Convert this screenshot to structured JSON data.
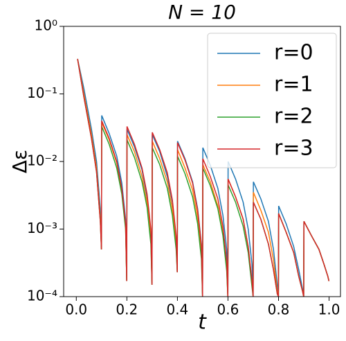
{
  "chart_data": {
    "type": "line",
    "title": "N = 10",
    "x_label": "t",
    "y_label": "Δε",
    "yscale": "log",
    "xlim": [
      -0.05,
      1.045
    ],
    "ylim": [
      0.0001,
      1
    ],
    "xticks": [
      {
        "value": 0,
        "label": "0.0"
      },
      0.2,
      0.4,
      0.6,
      0.8,
      {
        "value": 1,
        "label": "1.0"
      }
    ],
    "yticks": [
      {
        "value": 0.0001,
        "label": "10⁻⁴"
      },
      {
        "value": 0.001,
        "label": "10⁻³"
      },
      {
        "value": 0.01,
        "label": "10⁻²"
      },
      {
        "value": 0.1,
        "label": "10⁻¹"
      },
      {
        "value": 1,
        "label": "10⁰"
      }
    ],
    "legend": "upper right",
    "x": [
      0.005,
      0.03,
      0.06,
      0.08,
      0.095,
      0.0995,
      0.1005,
      0.13,
      0.16,
      0.18,
      0.195,
      0.1995,
      0.2005,
      0.23,
      0.26,
      0.28,
      0.295,
      0.2995,
      0.3005,
      0.33,
      0.36,
      0.38,
      0.395,
      0.3995,
      0.4005,
      0.43,
      0.46,
      0.48,
      0.495,
      0.4995,
      0.5005,
      0.53,
      0.56,
      0.58,
      0.595,
      0.5995,
      0.6005,
      0.63,
      0.66,
      0.68,
      0.695,
      0.6995,
      0.7005,
      0.73,
      0.76,
      0.78,
      0.795,
      0.7995,
      0.8005,
      0.83,
      0.86,
      0.88,
      0.895,
      0.8995,
      0.9005,
      0.93,
      0.96,
      0.98,
      0.995,
      0.9995
    ],
    "series": [
      {
        "name": "r=0",
        "color": "#1f77b4",
        "values": [
          0.33,
          0.12,
          0.03,
          0.01,
          0.002,
          0.0005,
          0.048,
          0.026,
          0.012,
          0.0048,
          0.0014,
          0.00017,
          0.03,
          0.0165,
          0.0075,
          0.003,
          0.0009,
          0.00015,
          0.025,
          0.014,
          0.006,
          0.0025,
          0.00075,
          0.00023,
          0.02,
          0.011,
          0.005,
          0.002,
          0.0006,
          0.0001,
          0.016,
          0.0088,
          0.004,
          0.0016,
          0.0005,
          0.0001,
          0.01,
          0.0055,
          0.0025,
          0.001,
          0.0003,
          0.0001,
          0.005,
          0.0028,
          0.0013,
          0.0005,
          0.00015,
          0.0001,
          0.0022,
          0.0012,
          0.00055,
          0.00025,
          0.00013,
          0.0001,
          0.0013,
          0.0008,
          0.0005,
          0.0003,
          0.0002,
          0.00017
        ]
      },
      {
        "name": "r=1",
        "color": "#ff7f0e",
        "values": [
          0.33,
          0.1,
          0.025,
          0.008,
          0.0015,
          0.0005,
          0.038,
          0.021,
          0.0095,
          0.0038,
          0.0011,
          0.00017,
          0.025,
          0.014,
          0.006,
          0.0025,
          0.00075,
          0.00015,
          0.02,
          0.011,
          0.005,
          0.002,
          0.0006,
          0.00023,
          0.015,
          0.008,
          0.0038,
          0.0015,
          0.00045,
          0.0001,
          0.009,
          0.005,
          0.0022,
          0.0009,
          0.00027,
          0.0001,
          0.0055,
          0.003,
          0.0014,
          0.00055,
          0.00017,
          0.0001,
          0.0035,
          0.0019,
          0.0009,
          0.00035,
          0.00012,
          0.0001,
          0.0017,
          0.0009,
          0.00045,
          0.0002,
          0.00012,
          0.0001,
          0.0013,
          0.0008,
          0.0005,
          0.0003,
          0.0002,
          0.00017
        ]
      },
      {
        "name": "r=2",
        "color": "#2ca02c",
        "values": [
          0.33,
          0.09,
          0.022,
          0.007,
          0.0013,
          0.0005,
          0.033,
          0.018,
          0.008,
          0.0033,
          0.001,
          0.00017,
          0.021,
          0.0115,
          0.005,
          0.0021,
          0.0006,
          0.00015,
          0.016,
          0.009,
          0.004,
          0.0016,
          0.0005,
          0.00023,
          0.012,
          0.0066,
          0.003,
          0.0012,
          0.00036,
          0.0001,
          0.008,
          0.0044,
          0.002,
          0.0008,
          0.00024,
          0.0001,
          0.0045,
          0.0025,
          0.0011,
          0.00045,
          0.00014,
          0.0001,
          0.0025,
          0.0014,
          0.0006,
          0.00025,
          0.00011,
          0.0001,
          0.0017,
          0.0009,
          0.00045,
          0.0002,
          0.00012,
          0.0001,
          0.0013,
          0.0008,
          0.0005,
          0.0003,
          0.0002,
          0.00017
        ]
      },
      {
        "name": "r=3",
        "color": "#d62728",
        "values": [
          0.33,
          0.09,
          0.022,
          0.007,
          0.0013,
          0.0005,
          0.04,
          0.022,
          0.01,
          0.004,
          0.0012,
          0.00017,
          0.033,
          0.018,
          0.008,
          0.0033,
          0.001,
          0.00015,
          0.027,
          0.015,
          0.0068,
          0.0027,
          0.0008,
          0.00023,
          0.019,
          0.0105,
          0.0048,
          0.0019,
          0.00057,
          0.0001,
          0.011,
          0.006,
          0.0028,
          0.0011,
          0.00033,
          0.0001,
          0.0055,
          0.003,
          0.0014,
          0.00055,
          0.00017,
          0.0001,
          0.0025,
          0.0014,
          0.0006,
          0.00025,
          0.00011,
          0.0001,
          0.0017,
          0.0009,
          0.00045,
          0.0002,
          0.00012,
          0.0001,
          0.0013,
          0.0008,
          0.0005,
          0.0003,
          0.0002,
          0.00017
        ]
      }
    ]
  }
}
